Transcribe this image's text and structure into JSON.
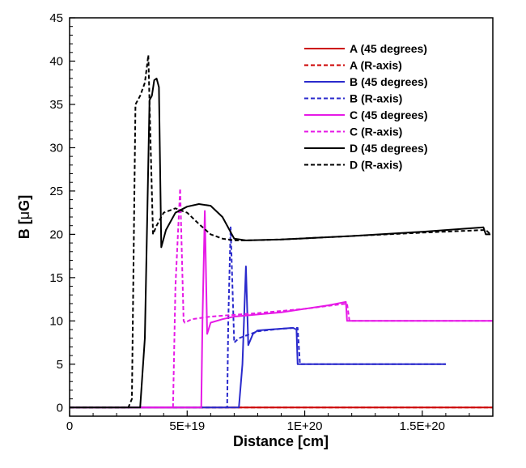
{
  "chart_data": {
    "type": "line",
    "title": "",
    "xlabel": "Distance [cm]",
    "ylabel_prefix": "B [",
    "ylabel_mu": "μ",
    "ylabel_suffix": "G]",
    "xlim": [
      0,
      1.8e+20
    ],
    "ylim": [
      -1,
      45
    ],
    "xticks": [
      {
        "value": 0,
        "label": "0"
      },
      {
        "value": 5e+19,
        "label": "5E+19"
      },
      {
        "value": 1e+20,
        "label": "1E+20"
      },
      {
        "value": 1.5e+20,
        "label": "1.5E+20"
      }
    ],
    "yticks": [
      {
        "value": 0,
        "label": "0"
      },
      {
        "value": 5,
        "label": "5"
      },
      {
        "value": 10,
        "label": "10"
      },
      {
        "value": 15,
        "label": "15"
      },
      {
        "value": 20,
        "label": "20"
      },
      {
        "value": 25,
        "label": "25"
      },
      {
        "value": 30,
        "label": "30"
      },
      {
        "value": 35,
        "label": "35"
      },
      {
        "value": 40,
        "label": "40"
      },
      {
        "value": 45,
        "label": "45"
      }
    ],
    "legend_position": "top-right",
    "series": [
      {
        "name": "A (45 degrees)",
        "color": "#cc0000",
        "dash": "solid",
        "x": [
          0,
          1.8e+20
        ],
        "y": [
          0,
          0
        ]
      },
      {
        "name": "A (R-axis)",
        "color": "#cc0000",
        "dash": "dashed",
        "x": [
          0,
          1.8e+20
        ],
        "y": [
          0,
          0
        ]
      },
      {
        "name": "B (45 degrees)",
        "color": "#2a2acc",
        "dash": "solid",
        "x": [
          0,
          7.2e+19,
          7.35e+19,
          7.5e+19,
          7.6e+19,
          7.8e+19,
          8e+19,
          8.5e+19,
          9e+19,
          9.5e+19,
          9.65e+19,
          9.7e+19,
          1e+20,
          1.3e+20,
          1.6e+20
        ],
        "y": [
          0,
          0,
          5,
          16.3,
          7.2,
          8.5,
          8.9,
          9.0,
          9.1,
          9.2,
          9.0,
          5.0,
          5.0,
          5.0,
          5.0
        ]
      },
      {
        "name": "B (R-axis)",
        "color": "#2a2acc",
        "dash": "dashed",
        "x": [
          0,
          6.7e+19,
          6.75e+19,
          6.85e+19,
          7e+19,
          7.2e+19,
          7.5e+19,
          8e+19,
          9e+19,
          9.7e+19,
          9.8e+19,
          1e+20,
          1.3e+20,
          1.6e+20
        ],
        "y": [
          0,
          0,
          10,
          20.8,
          7.5,
          8.0,
          8.3,
          8.8,
          9.1,
          9.2,
          5.0,
          5.0,
          5.0,
          5.0
        ]
      },
      {
        "name": "C (45 degrees)",
        "color": "#e619e6",
        "dash": "solid",
        "x": [
          0,
          5.6e+19,
          5.65e+19,
          5.75e+19,
          5.85e+19,
          6e+19,
          6.5e+19,
          7e+19,
          9e+19,
          1.1e+20,
          1.175e+20,
          1.18e+20,
          1.4e+20,
          1.8e+20
        ],
        "y": [
          0,
          0,
          10,
          22.7,
          8.5,
          9.8,
          10.2,
          10.5,
          11.0,
          11.8,
          12.2,
          10.0,
          10.0,
          10.0
        ]
      },
      {
        "name": "C (R-axis)",
        "color": "#e619e6",
        "dash": "dashed",
        "x": [
          0,
          4.4e+19,
          4.5e+19,
          4.7e+19,
          4.85e+19,
          4.9e+19,
          5.2e+19,
          6e+19,
          8e+19,
          1e+20,
          1.15e+20,
          1.18e+20,
          1.19e+20,
          1.8e+20
        ],
        "y": [
          0,
          0,
          14,
          25.3,
          10,
          9.8,
          10.2,
          10.5,
          10.9,
          11.4,
          11.9,
          12.0,
          10.0,
          10.0
        ]
      },
      {
        "name": "D (45 degrees)",
        "color": "#000000",
        "dash": "solid",
        "x": [
          0,
          3e+19,
          3.2e+19,
          3.4e+19,
          3.5e+19,
          3.6e+19,
          3.7e+19,
          3.8e+19,
          3.9e+19,
          4.1e+19,
          4.5e+19,
          5e+19,
          5.5e+19,
          6e+19,
          6.5e+19,
          7e+19,
          7.5e+19,
          9e+19,
          1.2e+20,
          1.5e+20,
          1.76e+20,
          1.77e+20,
          1.79e+20
        ],
        "y": [
          0,
          0,
          8,
          35.5,
          36,
          37.8,
          38,
          37,
          18.5,
          20.5,
          22.5,
          23.2,
          23.5,
          23.3,
          22,
          19.5,
          19.3,
          19.4,
          19.8,
          20.3,
          20.8,
          20.0,
          20.0
        ]
      },
      {
        "name": "D (R-axis)",
        "color": "#000000",
        "dash": "dashed",
        "x": [
          0,
          2.5e+19,
          2.65e+19,
          2.7e+19,
          2.8e+19,
          3e+19,
          3.2e+19,
          3.35e+19,
          3.45e+19,
          3.55e+19,
          3.7e+19,
          4e+19,
          4.5e+19,
          5e+19,
          5.5e+19,
          6e+19,
          6.5e+19,
          7e+19,
          7.5e+19,
          9e+19,
          1.2e+20,
          1.5e+20,
          1.77e+20,
          1.79e+20
        ],
        "y": [
          0,
          0,
          1,
          12,
          35,
          36,
          37.5,
          40.7,
          30,
          20.0,
          21,
          22.5,
          23.0,
          22.5,
          21.2,
          20,
          19.5,
          19.3,
          19.3,
          19.4,
          19.8,
          20.2,
          20.5,
          20.0
        ]
      }
    ]
  }
}
